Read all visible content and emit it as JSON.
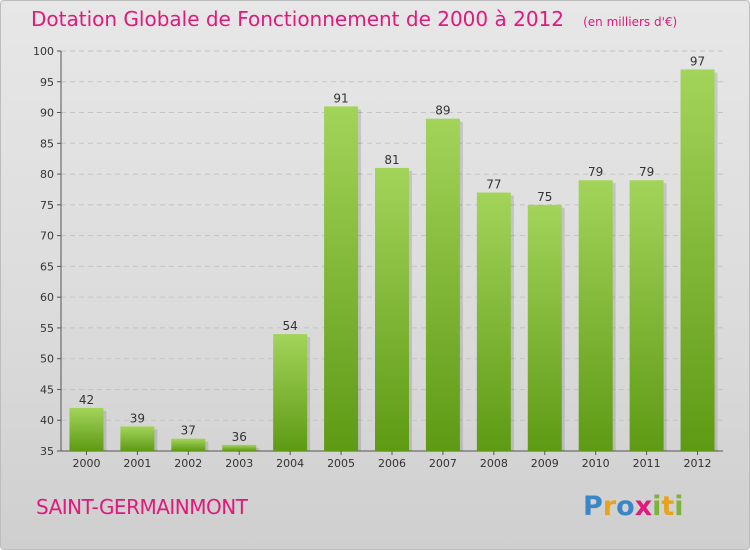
{
  "title": "Dotation Globale de Fonctionnement de 2000 à 2012",
  "unit": "(en milliers d'€)",
  "commune": "SAINT-GERMAINMONT",
  "logo": {
    "text": "Proxiti",
    "letters": [
      {
        "ch": "P",
        "color": "#3b86c6"
      },
      {
        "ch": "r",
        "color": "#e8a31c"
      },
      {
        "ch": "o",
        "color": "#3b86c6"
      },
      {
        "ch": "x",
        "color": "#e0197d"
      },
      {
        "ch": "i",
        "color": "#7fb23a"
      },
      {
        "ch": "t",
        "color": "#e8a31c"
      },
      {
        "ch": "i",
        "color": "#7fb23a"
      }
    ]
  },
  "colors": {
    "title": "#e0197d",
    "bar_top": "#a3d45a",
    "bar_bottom": "#5e9a14",
    "axis_text": "#333333",
    "grid": "#c4c4c4"
  },
  "chart_data": {
    "type": "bar",
    "title": "Dotation Globale de Fonctionnement de 2000 à 2012",
    "categories": [
      "2000",
      "2001",
      "2002",
      "2003",
      "2004",
      "2005",
      "2006",
      "2007",
      "2008",
      "2009",
      "2010",
      "2011",
      "2012"
    ],
    "values": [
      42,
      39,
      37,
      36,
      54,
      91,
      81,
      89,
      77,
      75,
      79,
      79,
      97
    ],
    "ylim": [
      35,
      100
    ],
    "yticks": [
      35,
      40,
      45,
      50,
      55,
      60,
      65,
      70,
      75,
      80,
      85,
      90,
      95,
      100
    ],
    "grid": true,
    "xlabel": "",
    "ylabel": ""
  }
}
